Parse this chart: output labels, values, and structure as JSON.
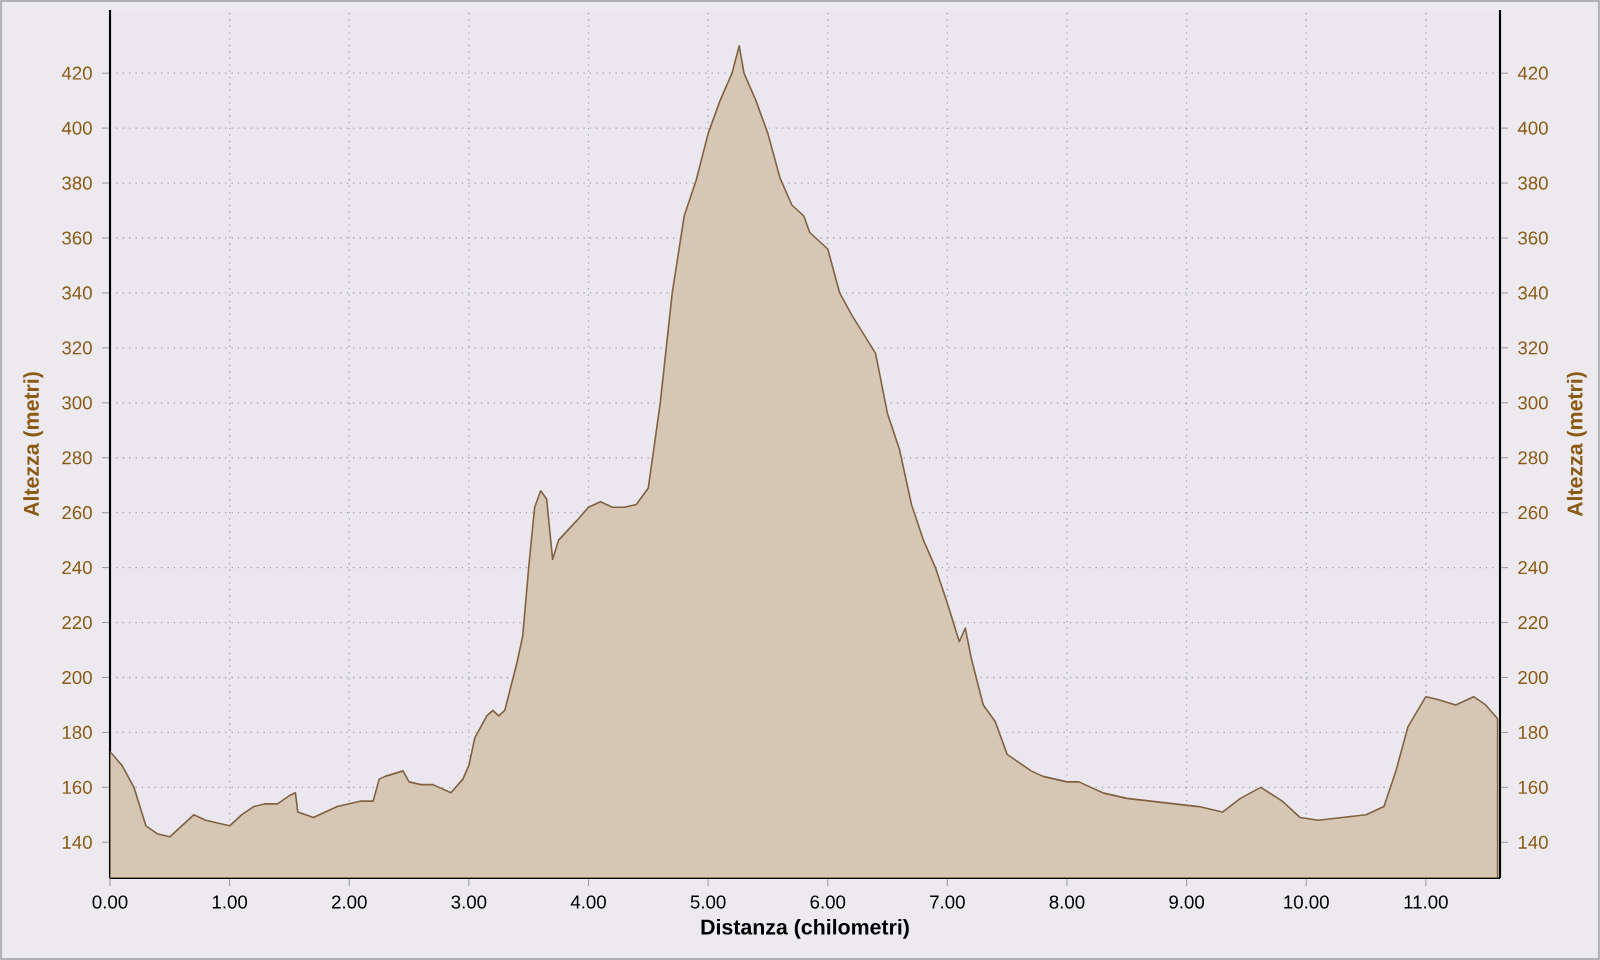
{
  "chart_data": {
    "type": "area",
    "xlabel": "Distanza (chilometri)",
    "ylabel": "Altezza (metri)",
    "y2label": "Altezza (metri)",
    "x": [
      0,
      0.1,
      0.2,
      0.3,
      0.4,
      0.5,
      0.6,
      0.7,
      0.8,
      0.9,
      1.0,
      1.1,
      1.2,
      1.3,
      1.4,
      1.5,
      1.55,
      1.57,
      1.7,
      1.8,
      1.9,
      2.0,
      2.1,
      2.2,
      2.25,
      2.3,
      2.45,
      2.5,
      2.6,
      2.7,
      2.85,
      2.95,
      3.0,
      3.05,
      3.15,
      3.2,
      3.25,
      3.3,
      3.4,
      3.45,
      3.5,
      3.55,
      3.6,
      3.65,
      3.7,
      3.75,
      3.9,
      4.0,
      4.1,
      4.2,
      4.3,
      4.4,
      4.5,
      4.6,
      4.7,
      4.8,
      4.9,
      5.0,
      5.1,
      5.2,
      5.26,
      5.3,
      5.4,
      5.5,
      5.6,
      5.7,
      5.8,
      5.85,
      6.0,
      6.1,
      6.2,
      6.3,
      6.4,
      6.5,
      6.6,
      6.7,
      6.8,
      6.9,
      7.0,
      7.1,
      7.15,
      7.2,
      7.3,
      7.4,
      7.5,
      7.6,
      7.7,
      7.8,
      8.0,
      8.1,
      8.2,
      8.3,
      8.4,
      8.5,
      8.7,
      8.9,
      9.1,
      9.3,
      9.45,
      9.62,
      9.8,
      9.95,
      10.1,
      10.3,
      10.5,
      10.65,
      10.75,
      10.85,
      11.0,
      11.1,
      11.25,
      11.4,
      11.5,
      11.6
    ],
    "series": [
      {
        "color": "#d6c7b4",
        "values": [
          173,
          168,
          160,
          146,
          143,
          142,
          146,
          150,
          148,
          147,
          146,
          150,
          153,
          154,
          154,
          157,
          158,
          151,
          149,
          151,
          153,
          154,
          155,
          155,
          163,
          164,
          166,
          162,
          161,
          161,
          158,
          163,
          168,
          178,
          186,
          188,
          186,
          188,
          205,
          215,
          240,
          262,
          268,
          265,
          243,
          250,
          257,
          262,
          264,
          262,
          262,
          263,
          269,
          300,
          340,
          368,
          381,
          398,
          410,
          420,
          430,
          420,
          410,
          398,
          382,
          372,
          368,
          362,
          356,
          340,
          332,
          325,
          318,
          296,
          283,
          263,
          250,
          240,
          227,
          213,
          218,
          207,
          190,
          184,
          172,
          169,
          166,
          164,
          162,
          162,
          160,
          158,
          157,
          156,
          155,
          154,
          153,
          151,
          156,
          160,
          155,
          149,
          148,
          149,
          150,
          153,
          166,
          182,
          193,
          192,
          190,
          193,
          190,
          185
        ]
      }
    ],
    "xlim": [
      0,
      11.62
    ],
    "ylim": [
      127,
      443
    ],
    "y2lim": [
      127,
      443
    ],
    "xticks": [
      {
        "value": 0,
        "label": "0.00"
      },
      {
        "value": 1,
        "label": "1.00"
      },
      {
        "value": 2,
        "label": "2.00"
      },
      {
        "value": 3,
        "label": "3.00"
      },
      {
        "value": 4,
        "label": "4.00"
      },
      {
        "value": 5,
        "label": "5.00"
      },
      {
        "value": 6,
        "label": "6.00"
      },
      {
        "value": 7,
        "label": "7.00"
      },
      {
        "value": 8,
        "label": "8.00"
      },
      {
        "value": 9,
        "label": "9.00"
      },
      {
        "value": 10,
        "label": "10.00"
      },
      {
        "value": 11,
        "label": "11.00"
      }
    ],
    "yticks": [
      140,
      160,
      180,
      200,
      220,
      240,
      260,
      280,
      300,
      320,
      340,
      360,
      380,
      400,
      420
    ],
    "y2ticks": [
      140,
      160,
      180,
      200,
      220,
      240,
      260,
      280,
      300,
      320,
      340,
      360,
      380,
      400,
      420
    ],
    "grid": true,
    "marker": "none",
    "line_style": "solid"
  }
}
